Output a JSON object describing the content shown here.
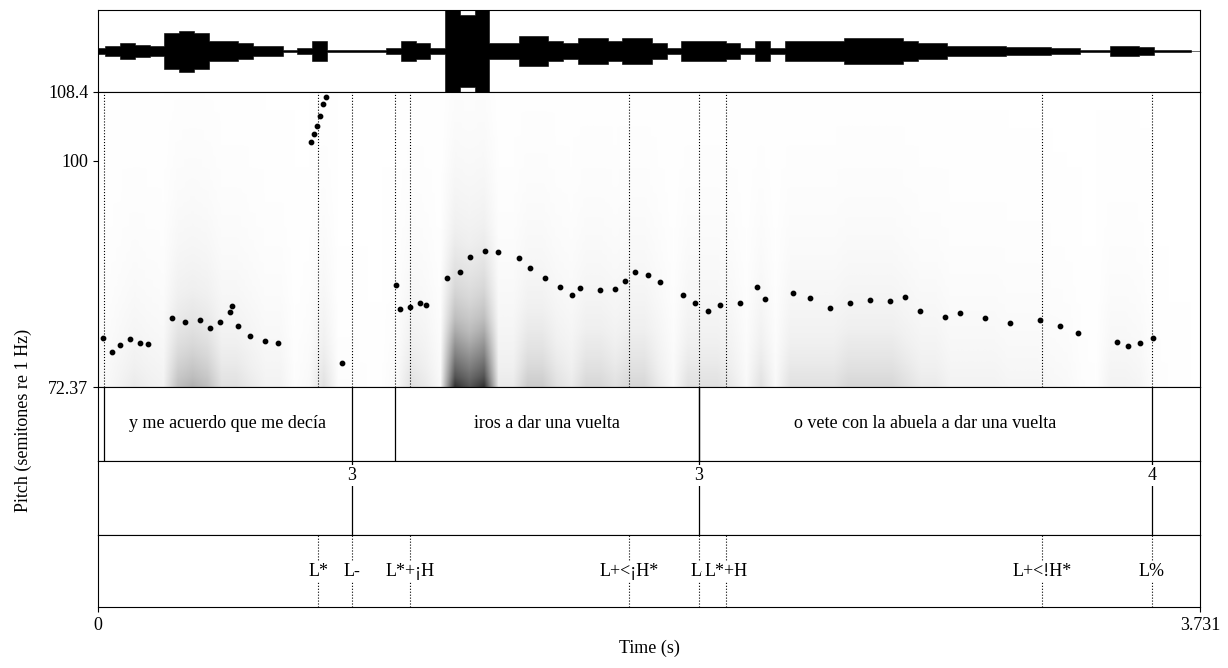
{
  "chart_data": {
    "type": "scatter",
    "xlabel": "Time (s)",
    "ylabel": "Pitch (semitones re 1 Hz)",
    "xlim": [
      0,
      3.731
    ],
    "xticks": [
      0,
      3.731
    ],
    "ylim": [
      72.37,
      108.4
    ],
    "yticks": [
      72.37,
      100,
      108.4
    ],
    "color": "#000000",
    "marker": "o",
    "x": [
      0.017,
      0.047,
      0.074,
      0.108,
      0.142,
      0.169,
      0.251,
      0.295,
      0.345,
      0.379,
      0.413,
      0.447,
      0.454,
      0.474,
      0.515,
      0.565,
      0.609,
      0.721,
      0.731,
      0.741,
      0.752,
      0.762,
      0.772,
      0.826,
      1.009,
      1.022,
      1.056,
      1.09,
      1.11,
      1.181,
      1.225,
      1.259,
      1.31,
      1.354,
      1.425,
      1.462,
      1.513,
      1.564,
      1.605,
      1.632,
      1.699,
      1.75,
      1.784,
      1.818,
      1.862,
      1.902,
      1.98,
      2.021,
      2.065,
      2.106,
      2.173,
      2.231,
      2.258,
      2.353,
      2.41,
      2.478,
      2.546,
      2.613,
      2.681,
      2.732,
      2.783,
      2.867,
      2.918,
      3.003,
      3.087,
      3.189,
      3.257,
      3.318,
      3.45,
      3.487,
      3.527,
      3.571
    ],
    "values": [
      78.4,
      76.7,
      77.5,
      78.2,
      77.8,
      77.6,
      80.8,
      80.3,
      80.6,
      79.6,
      80.3,
      81.5,
      82.3,
      79.8,
      78.6,
      78.0,
      77.7,
      102.3,
      103.3,
      104.2,
      105.5,
      106.9,
      107.8,
      75.3,
      84.8,
      81.9,
      82.1,
      82.6,
      82.4,
      85.7,
      86.4,
      88.3,
      89.0,
      88.9,
      88.1,
      86.9,
      85.7,
      84.6,
      83.6,
      84.5,
      84.2,
      84.3,
      85.3,
      86.4,
      86.1,
      85.2,
      83.6,
      82.6,
      81.6,
      82.4,
      82.6,
      84.6,
      83.1,
      83.9,
      83.2,
      82.0,
      82.6,
      83.0,
      82.9,
      83.4,
      81.7,
      80.9,
      81.4,
      80.8,
      80.2,
      80.6,
      79.8,
      79.0,
      77.9,
      77.4,
      77.8,
      78.4
    ],
    "waveform": {
      "t": [
        0.0,
        0.05,
        0.1,
        0.15,
        0.2,
        0.25,
        0.3,
        0.35,
        0.4,
        0.45,
        0.5,
        0.55,
        0.6,
        0.65,
        0.7,
        0.75,
        0.8,
        0.85,
        0.9,
        0.95,
        1.0,
        1.05,
        1.1,
        1.15,
        1.2,
        1.25,
        1.3,
        1.35,
        1.4,
        1.45,
        1.5,
        1.55,
        1.6,
        1.65,
        1.7,
        1.75,
        1.8,
        1.85,
        1.9,
        1.95,
        2.0,
        2.05,
        2.1,
        2.15,
        2.2,
        2.25,
        2.3,
        2.35,
        2.4,
        2.45,
        2.5,
        2.55,
        2.6,
        2.65,
        2.7,
        2.75,
        2.8,
        2.85,
        2.9,
        2.95,
        3.0,
        3.05,
        3.1,
        3.15,
        3.2,
        3.25,
        3.3,
        3.35,
        3.4,
        3.45,
        3.5,
        3.55,
        3.6,
        3.65,
        3.7
      ],
      "amplitude": [
        0.05,
        0.1,
        0.15,
        0.12,
        0.1,
        0.35,
        0.4,
        0.35,
        0.2,
        0.2,
        0.15,
        0.1,
        0.1,
        0.02,
        0.05,
        0.2,
        0.02,
        0.02,
        0.01,
        0.01,
        0.05,
        0.2,
        0.15,
        0.05,
        0.8,
        0.7,
        0.8,
        0.15,
        0.15,
        0.3,
        0.3,
        0.2,
        0.15,
        0.25,
        0.25,
        0.2,
        0.25,
        0.25,
        0.15,
        0.05,
        0.2,
        0.2,
        0.2,
        0.15,
        0.05,
        0.2,
        0.05,
        0.2,
        0.2,
        0.2,
        0.2,
        0.25,
        0.25,
        0.25,
        0.25,
        0.2,
        0.15,
        0.15,
        0.1,
        0.1,
        0.1,
        0.1,
        0.08,
        0.08,
        0.08,
        0.06,
        0.05,
        0.02,
        0.01,
        0.1,
        0.1,
        0.08,
        0.02,
        0.01,
        0.01
      ]
    },
    "tiers": {
      "words": [
        {
          "start": 0.02,
          "end": 0.86,
          "text": "y me acuerdo que me decía"
        },
        {
          "start": 1.005,
          "end": 2.034,
          "text": "iros a dar una vuelta"
        },
        {
          "start": 2.034,
          "end": 3.568,
          "text": "o vete con la abuela a dar una vuelta"
        }
      ],
      "breaks": [
        {
          "time": 0.86,
          "label": "3"
        },
        {
          "time": 2.034,
          "label": "3"
        },
        {
          "time": 3.568,
          "label": "4"
        }
      ],
      "tones": [
        {
          "time": 0.745,
          "label": "L*"
        },
        {
          "time": 0.86,
          "label": "L-"
        },
        {
          "time": 1.056,
          "label": "L*+¡H"
        },
        {
          "time": 1.798,
          "label": "L+<¡H*"
        },
        {
          "time": 2.034,
          "label": "L-"
        },
        {
          "time": 2.126,
          "label": "L*+H"
        },
        {
          "time": 3.196,
          "label": "L+<!H*"
        },
        {
          "time": 3.568,
          "label": "L%"
        }
      ]
    }
  }
}
